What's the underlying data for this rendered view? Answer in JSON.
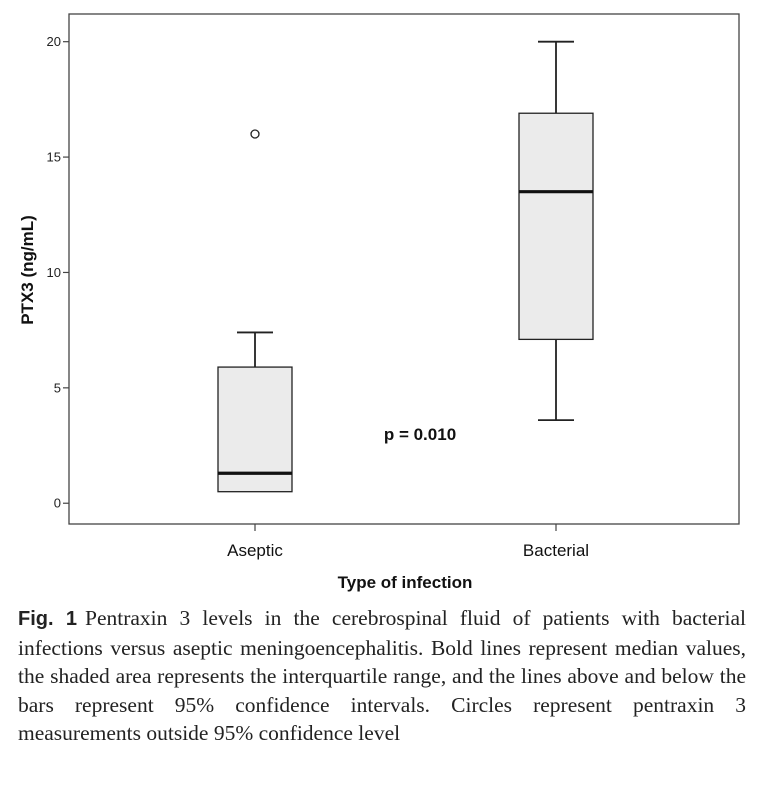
{
  "chart_data": {
    "type": "box",
    "xlabel": "Type of infection",
    "ylabel": "PTX3 (ng/mL)",
    "ylim": [
      -0.9,
      21.2
    ],
    "yticks": [
      0,
      5,
      10,
      15,
      20
    ],
    "grid": false,
    "categories": [
      "Aseptic",
      "Bacterial"
    ],
    "boxes": [
      {
        "category": "Aseptic",
        "whisker_low": 0.5,
        "q1": 0.5,
        "median": 1.3,
        "q3": 5.9,
        "whisker_high": 7.4,
        "outliers": [
          16.0
        ]
      },
      {
        "category": "Bacterial",
        "whisker_low": 3.6,
        "q1": 7.1,
        "median": 13.5,
        "q3": 16.9,
        "whisker_high": 20.0,
        "outliers": []
      }
    ],
    "annotations": [
      "p = 0.010"
    ],
    "box_fill": "#ebebeb",
    "line_color": "#222222"
  },
  "caption": {
    "label": "Fig. 1",
    "text": "Pentraxin 3 levels in the cerebrospinal fluid of patients with bacterial infections versus aseptic meningoencephalitis. Bold lines represent median values, the shaded area represents the interquartile range, and the lines above and below the bars represent 95% confidence intervals. Circles represent pentraxin 3 measurements outside 95% confidence level"
  }
}
